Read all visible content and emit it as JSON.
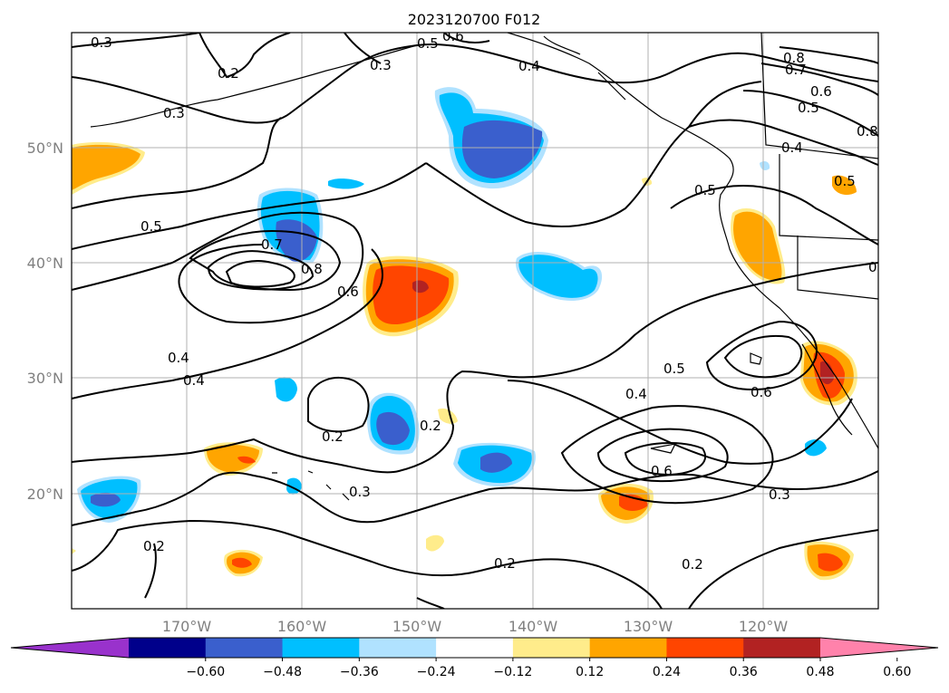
{
  "title": "2023120700 F012",
  "map": {
    "lon_range": [
      -180,
      -110
    ],
    "lat_range": [
      10,
      60
    ],
    "lat_ticks": [
      "50°N",
      "40°N",
      "30°N",
      "20°N"
    ],
    "lon_ticks": [
      "170°W",
      "160°W",
      "150°W",
      "140°W",
      "130°W",
      "120°W"
    ],
    "grid": true,
    "contour_labels": [
      "0.3",
      "0.2",
      "0.3",
      "0.5",
      "0.6",
      "0.3",
      "0.4",
      "0.8",
      "0.7",
      "0.6",
      "0.5",
      "0.4",
      "0.5",
      "0.5",
      "0.7",
      "0.8",
      "0.6",
      "0.4",
      "0.4",
      "0.2",
      "0.2",
      "0.3",
      "0.4",
      "0.5",
      "0.6",
      "0.6",
      "0.3",
      "0.2",
      "0.2",
      "0.2",
      "0.8",
      "0.5",
      "0.3"
    ]
  },
  "colorbar": {
    "extend": "both",
    "colors": [
      "#9932cc",
      "#00008b",
      "#3a5fcd",
      "#00bfff",
      "#b0e2ff",
      "#ffffff",
      "#ffec8b",
      "#ffa500",
      "#ff4500",
      "#b22222",
      "#ff82ab"
    ],
    "ticks": [
      "−0.60",
      "−0.48",
      "−0.36",
      "−0.24",
      "−0.12",
      "0.12",
      "0.24",
      "0.36",
      "0.48",
      "0.60"
    ]
  }
}
